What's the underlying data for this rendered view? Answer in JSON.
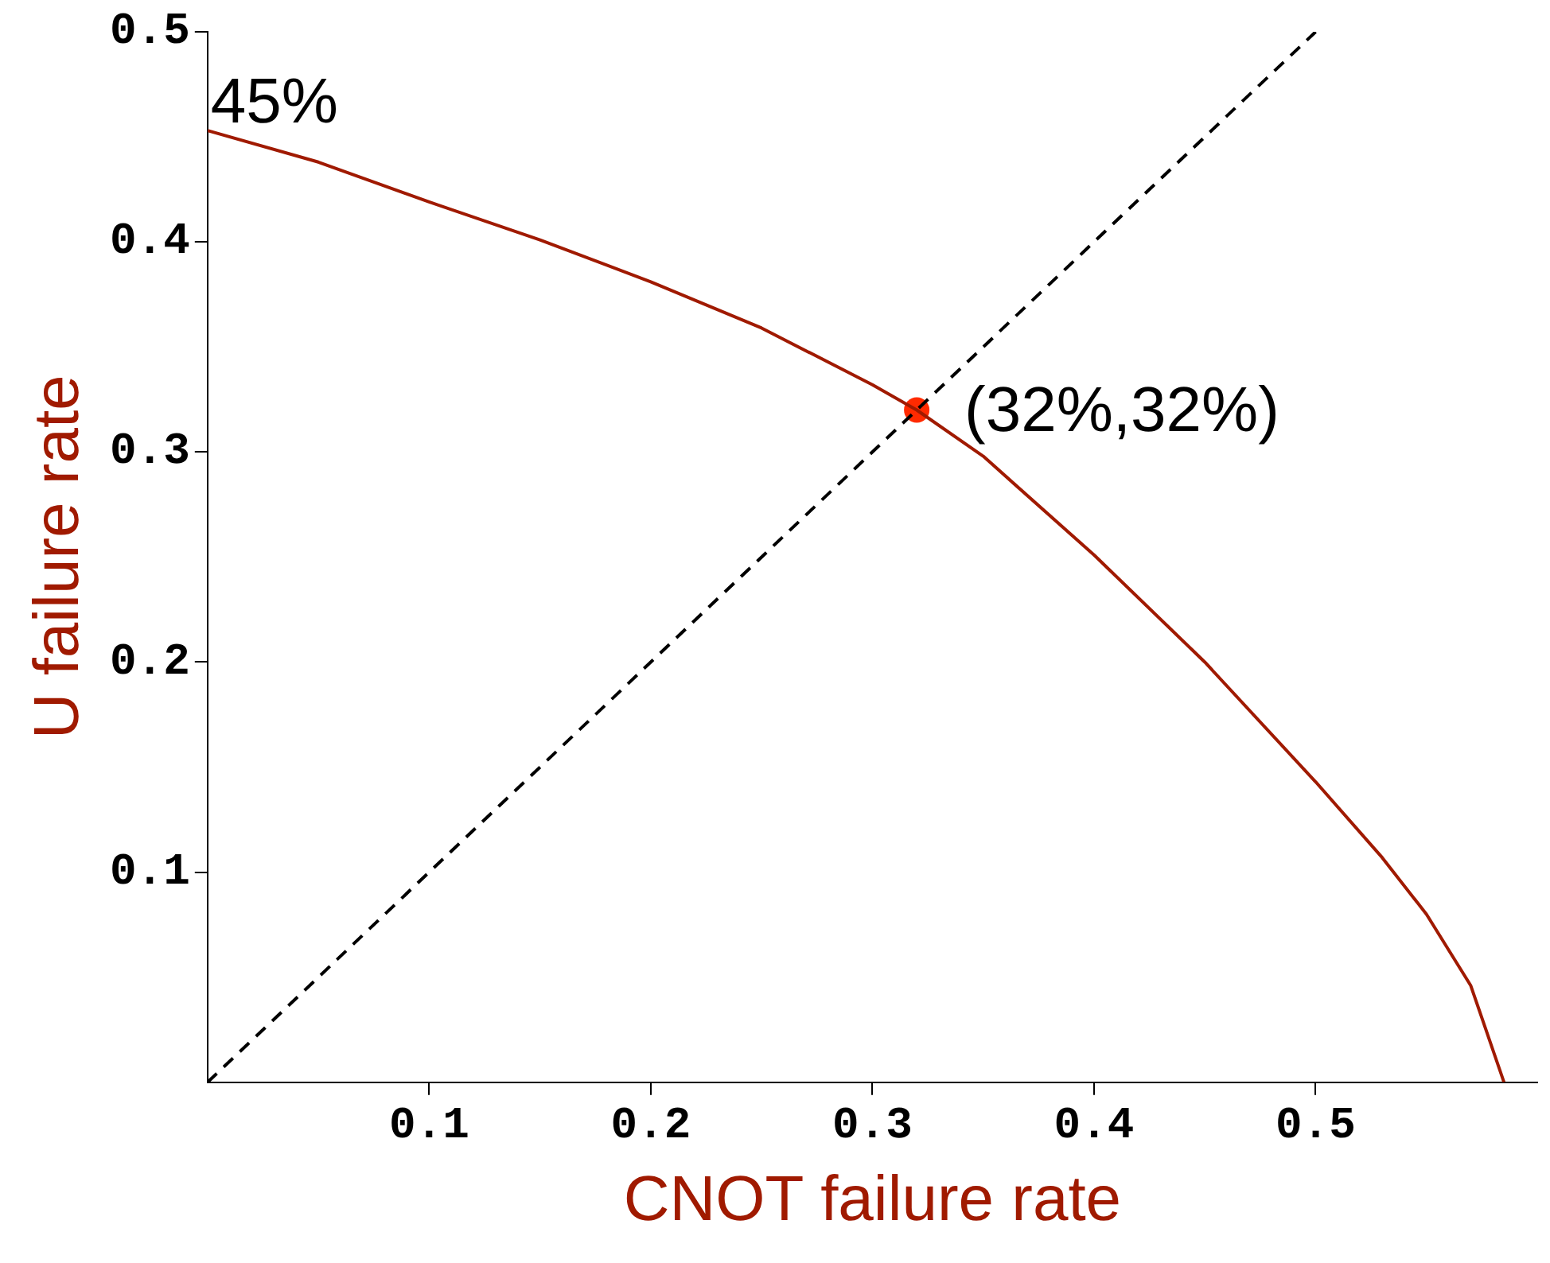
{
  "chart_data": {
    "type": "line",
    "xlabel": "CNOT failure rate",
    "ylabel": "U failure rate",
    "xlim": [
      0,
      0.6
    ],
    "ylim": [
      0,
      0.5
    ],
    "xticks": [
      0.1,
      0.2,
      0.3,
      0.4,
      0.5
    ],
    "yticks": [
      0.1,
      0.2,
      0.3,
      0.4,
      0.5
    ],
    "grid": false,
    "legend": false,
    "marker": "none",
    "line_style": "solid",
    "series": [
      {
        "type": "line",
        "color": "#a01a00",
        "x": [
          0,
          0.05,
          0.1,
          0.15,
          0.2,
          0.25,
          0.3,
          0.32,
          0.35,
          0.4,
          0.45,
          0.5,
          0.53,
          0.55,
          0.57,
          0.585
        ],
        "values": [
          0.453,
          0.438,
          0.419,
          0.401,
          0.381,
          0.359,
          0.332,
          0.32,
          0.298,
          0.251,
          0.2,
          0.143,
          0.107,
          0.08,
          0.046,
          0
        ]
      },
      {
        "type": "line",
        "color": "#000000",
        "line_style": "dashed",
        "x": [
          0,
          0.5
        ],
        "values": [
          0,
          0.5
        ]
      },
      {
        "type": "scatter",
        "color": "#ff2a00",
        "marker": "circle",
        "x": [
          0.32
        ],
        "values": [
          0.32
        ]
      }
    ],
    "annotations": [
      {
        "text": "45%",
        "x": 0,
        "y": 0.453
      },
      {
        "text": "(32%,32%)",
        "x": 0.32,
        "y": 0.32
      }
    ]
  }
}
